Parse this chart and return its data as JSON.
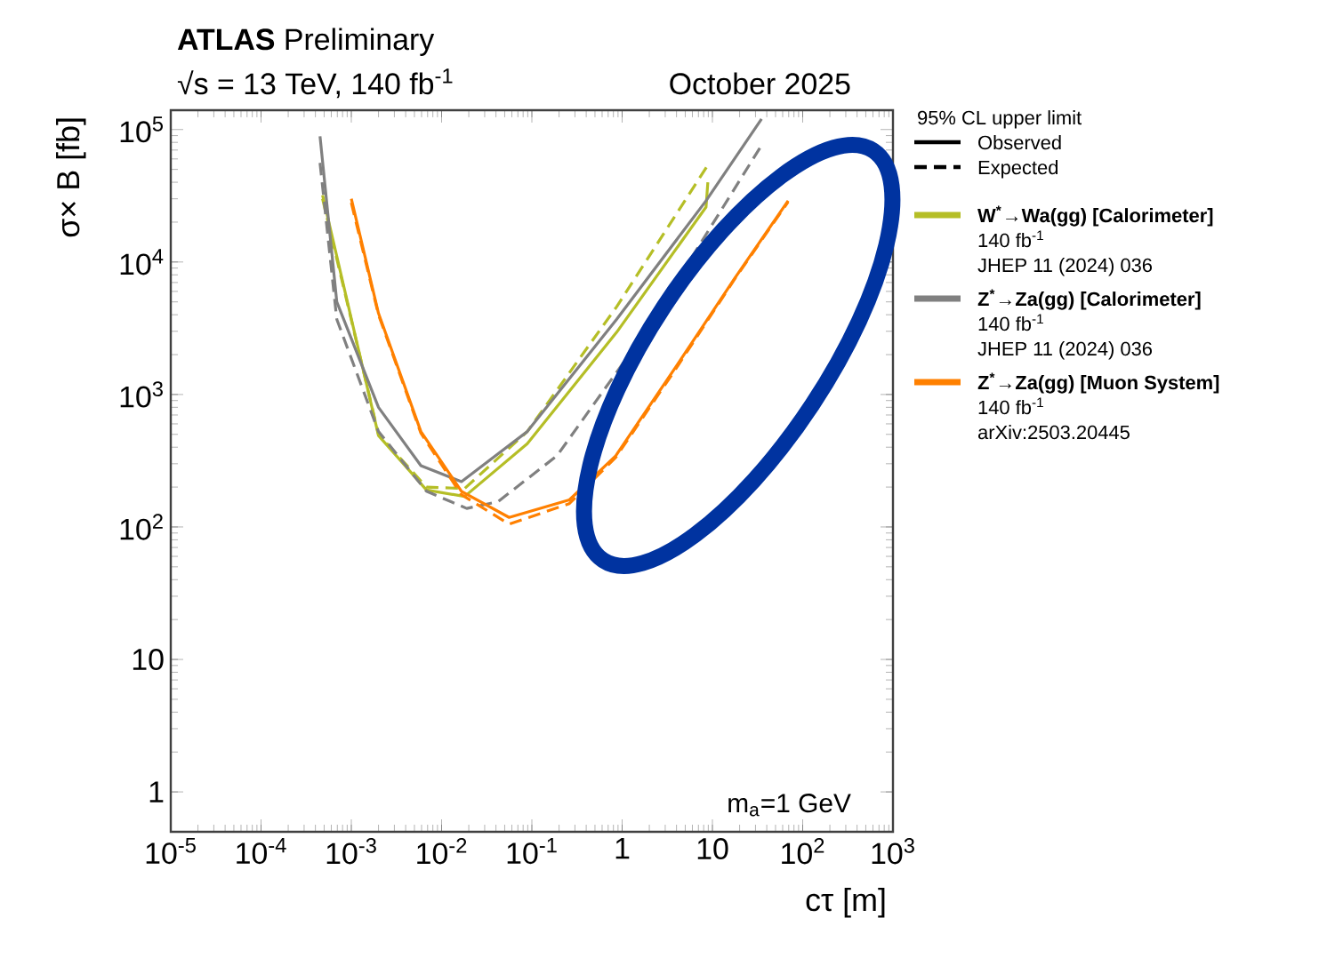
{
  "chart_data": {
    "type": "line",
    "title": "**ATLAS** Preliminary",
    "subtitle": "√s = 13 TeV, 140 fb$^{-1}$",
    "xlabel": "cτ [m]",
    "ylabel": "σ× B [fb]",
    "legend_title": "95% CL upper limit",
    "log": "xy",
    "xlim": [
      1e-05,
      1000
    ],
    "ylim": [
      0.5,
      140000
    ],
    "xticks": [
      {
        "value": 1e-05,
        "label": "10$^{-5}$"
      },
      {
        "value": 0.0001,
        "label": "10$^{-4}$"
      },
      {
        "value": 0.001,
        "label": "10$^{-3}$"
      },
      {
        "value": 0.01,
        "label": "10$^{-2}$"
      },
      {
        "value": 0.1,
        "label": "10$^{-1}$"
      },
      1,
      10,
      {
        "value": 100,
        "label": "10$^{2}$"
      },
      {
        "value": 1000,
        "label": "10$^{3}$"
      }
    ],
    "yticks": [
      1,
      10,
      {
        "value": 100,
        "label": "10$^{2}$"
      },
      {
        "value": 1000,
        "label": "10$^{3}$"
      },
      {
        "value": 10000,
        "label": "10$^{4}$"
      },
      {
        "value": 100000,
        "label": "10$^{5}$"
      }
    ],
    "grid": false,
    "legend": "right",
    "marker": "none",
    "series": [
      {
        "name": "W$^{*}$→Wa(gg) [Calorimeter]",
        "color": "#b5be26",
        "line_style": "solid",
        "x": [
          0.00048,
          0.002,
          0.0068,
          0.018,
          0.089,
          0.87,
          8.5,
          8.9
        ],
        "values": [
          32000,
          490,
          190,
          170,
          425,
          2950,
          26000,
          40000
        ]
      },
      {
        "color": "#b5be26",
        "line_style": "dashed",
        "x": [
          0.00048,
          0.002,
          0.0068,
          0.018,
          0.089,
          0.87,
          8.9
        ],
        "values": [
          30000,
          500,
          200,
          195,
          525,
          4600,
          54000
        ]
      },
      {
        "name": "Z$^{*}$→Za(gg) [Calorimeter]",
        "color": "#808080",
        "line_style": "solid",
        "x": [
          0.00045,
          0.00069,
          0.002,
          0.0059,
          0.0166,
          0.089,
          0.87,
          8.5,
          35
        ],
        "values": [
          89000,
          5000,
          800,
          290,
          220,
          525,
          3700,
          29000,
          120000
        ]
      },
      {
        "color": "#808080",
        "line_style": "dashed",
        "x": [
          0.00045,
          0.00069,
          0.002,
          0.0068,
          0.019,
          0.042,
          0.19,
          1.8,
          35
        ],
        "values": [
          56000,
          3700,
          525,
          186,
          138,
          155,
          345,
          2950,
          76000
        ]
      },
      {
        "name": "Z$^{*}$→Za(gg) [Muon System]",
        "color": "#ff8000",
        "line_style": "solid",
        "x": [
          0.001,
          0.002,
          0.0059,
          0.0166,
          0.056,
          0.26,
          0.85,
          3.9,
          17.8,
          69
        ],
        "values": [
          30000,
          4100,
          525,
          186,
          118,
          160,
          345,
          1600,
          7600,
          29000
        ]
      },
      {
        "color": "#ff8000",
        "line_style": "dashed",
        "x": [
          0.001,
          0.002,
          0.0059,
          0.0166,
          0.056,
          0.26,
          0.85,
          3.9,
          17.8,
          69
        ],
        "values": [
          28000,
          4000,
          510,
          175,
          105,
          150,
          335,
          1550,
          7500,
          28500
        ]
      }
    ],
    "annotations": [
      "October 2025",
      "m$_{a}$=1 GeV",
      "Observed",
      "Expected",
      "140 fb$^{-1}$",
      "JHEP 11 (2024) 036",
      "140 fb$^{-1}$",
      "JHEP 11 (2024) 036",
      "140 fb$^{-1}$",
      "arXiv:2503.20445"
    ]
  }
}
